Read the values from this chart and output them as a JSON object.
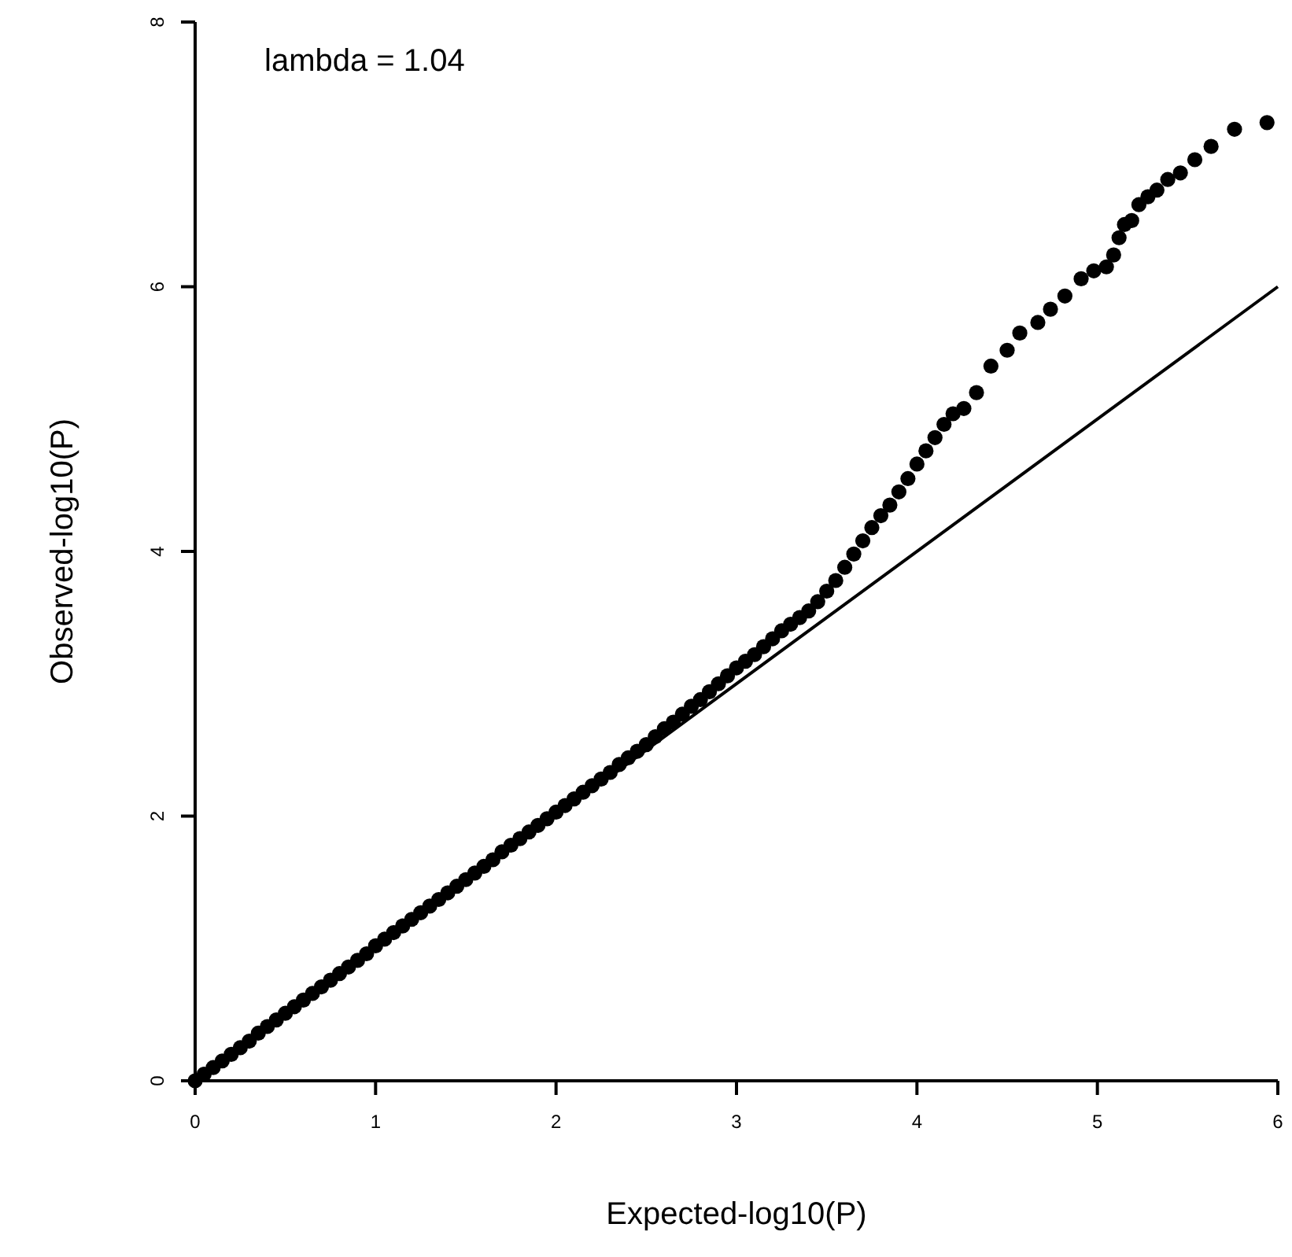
{
  "chart_data": {
    "type": "scatter",
    "xlabel": "Expected-log10(P)",
    "ylabel": "Observed-log10(P)",
    "annotations": [
      "lambda = 1.04"
    ],
    "xlim": [
      0,
      6
    ],
    "ylim": [
      0,
      8
    ],
    "xticks": [
      0,
      1,
      2,
      3,
      4,
      5,
      6
    ],
    "yticks": [
      0,
      2,
      4,
      6,
      8
    ],
    "grid": false,
    "series": [
      {
        "color": "#000000",
        "marker": "circle",
        "x": [
          0,
          0.05,
          0.1,
          0.15,
          0.2,
          0.25,
          0.3,
          0.35,
          0.4,
          0.45,
          0.5,
          0.55,
          0.6,
          0.65,
          0.7,
          0.75,
          0.8,
          0.85,
          0.9,
          0.95,
          1,
          1.05,
          1.1,
          1.15,
          1.2,
          1.25,
          1.3,
          1.35,
          1.4,
          1.45,
          1.5,
          1.55,
          1.6,
          1.65,
          1.7,
          1.75,
          1.8,
          1.85,
          1.9,
          1.95,
          2,
          2.05,
          2.1,
          2.15,
          2.2,
          2.25,
          2.3,
          2.35,
          2.4,
          2.45,
          2.5,
          2.55,
          2.6,
          2.65,
          2.7,
          2.75,
          2.8,
          2.85,
          2.9,
          2.95,
          3,
          3.05,
          3.1,
          3.15,
          3.2,
          3.25,
          3.3,
          3.35,
          3.4,
          3.45,
          3.5,
          3.55,
          3.6,
          3.65,
          3.7,
          3.75,
          3.8,
          3.85,
          3.9,
          3.95,
          4,
          4.05,
          4.1,
          4.15,
          4.2,
          4.26,
          4.33,
          4.41,
          4.5,
          4.57,
          4.67,
          4.74,
          4.82,
          4.91,
          4.98,
          5.05,
          5.09,
          5.12,
          5.15,
          5.19,
          5.23,
          5.28,
          5.33,
          5.39,
          5.46,
          5.54,
          5.63,
          5.76,
          5.94
        ],
        "values": [
          0,
          0.05,
          0.1,
          0.15,
          0.2,
          0.25,
          0.3,
          0.36,
          0.41,
          0.46,
          0.51,
          0.56,
          0.61,
          0.66,
          0.71,
          0.76,
          0.81,
          0.86,
          0.91,
          0.96,
          1.02,
          1.07,
          1.12,
          1.17,
          1.22,
          1.27,
          1.32,
          1.37,
          1.42,
          1.47,
          1.52,
          1.57,
          1.62,
          1.67,
          1.73,
          1.78,
          1.83,
          1.88,
          1.93,
          1.98,
          2.03,
          2.08,
          2.13,
          2.18,
          2.23,
          2.28,
          2.33,
          2.39,
          2.44,
          2.49,
          2.54,
          2.6,
          2.66,
          2.71,
          2.77,
          2.83,
          2.88,
          2.94,
          3,
          3.06,
          3.12,
          3.17,
          3.22,
          3.28,
          3.34,
          3.4,
          3.45,
          3.5,
          3.55,
          3.62,
          3.7,
          3.78,
          3.88,
          3.98,
          4.08,
          4.18,
          4.27,
          4.35,
          4.45,
          4.55,
          4.66,
          4.76,
          4.86,
          4.96,
          5.04,
          5.08,
          5.2,
          5.4,
          5.52,
          5.65,
          5.73,
          5.83,
          5.93,
          6.06,
          6.12,
          6.15,
          6.24,
          6.37,
          6.47,
          6.5,
          6.62,
          6.68,
          6.73,
          6.81,
          6.86,
          6.96,
          7.06,
          7.19,
          7.24
        ]
      },
      {
        "type": "line",
        "color": "#000000",
        "x": [
          0,
          6
        ],
        "values": [
          0,
          6
        ],
        "marker": "none"
      }
    ]
  }
}
